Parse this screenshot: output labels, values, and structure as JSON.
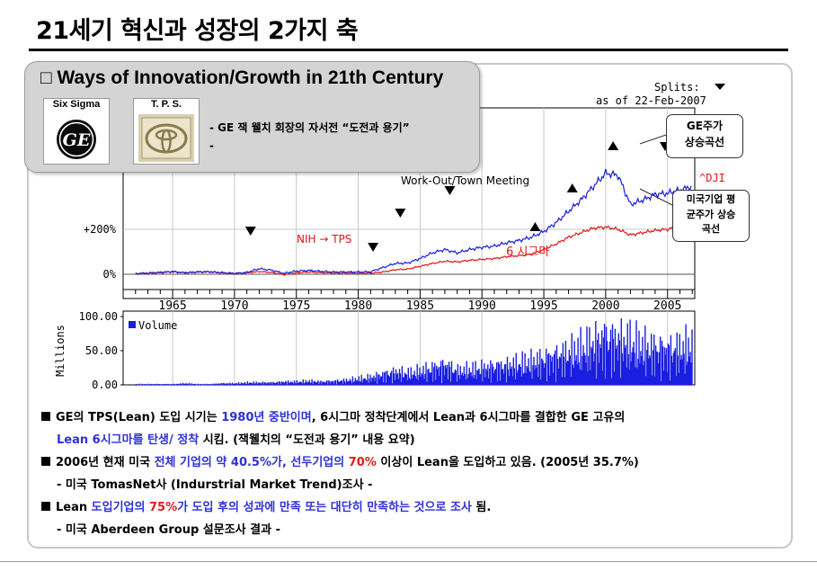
{
  "slide": {
    "title": "21세기 혁신과 성장의 2가지 축"
  },
  "overlay": {
    "title": "□ Ways of Innovation/Growth in 21th Century",
    "cards": [
      {
        "label": "Six Sigma",
        "logo": "ge-logo"
      },
      {
        "label": "T. P. S.",
        "logo": "toyota-logo"
      }
    ],
    "lines": [
      "-  GE 잭 웰치 회장의 자서전  “도전과 용기”",
      "-"
    ]
  },
  "chart_data": [
    {
      "type": "line",
      "header": {
        "splits": "Splits:",
        "as_of": "as of 22-Feb-2007"
      },
      "x_ticks": [
        "1965",
        "1970",
        "1975",
        "1980",
        "1985",
        "1990",
        "1995",
        "2000",
        "2005"
      ],
      "x_range": [
        1961,
        2007.2
      ],
      "y_ticks": [
        "0%",
        "+200%"
      ],
      "legend_label": "^DJI",
      "colors": {
        "stock": "#1a1ee0",
        "index": "#e01818"
      },
      "series": [
        {
          "name": "GE주가",
          "x": [
            1962,
            1963,
            1964,
            1965,
            1966,
            1967,
            1968,
            1969,
            1970,
            1971,
            1972,
            1973,
            1974,
            1975,
            1976,
            1977,
            1978,
            1979,
            1980,
            1981,
            1982,
            1983,
            1984,
            1985,
            1986,
            1987,
            1988,
            1989,
            1990,
            1991,
            1992,
            1993,
            1994,
            1995,
            1996,
            1997,
            1998,
            1999,
            2000,
            2001,
            2002,
            2003,
            2004,
            2005,
            2006,
            2007
          ],
          "values": [
            3,
            5,
            7,
            12,
            6,
            10,
            11,
            7,
            4,
            8,
            25,
            18,
            4,
            14,
            17,
            13,
            10,
            10,
            10,
            11,
            30,
            48,
            50,
            70,
            95,
            110,
            95,
            110,
            120,
            125,
            140,
            150,
            165,
            190,
            230,
            280,
            330,
            390,
            450,
            440,
            310,
            330,
            355,
            360,
            375,
            390
          ]
        },
        {
          "name": "^DJI",
          "x": [
            1962,
            1963,
            1964,
            1965,
            1966,
            1967,
            1968,
            1969,
            1970,
            1971,
            1972,
            1973,
            1974,
            1975,
            1976,
            1977,
            1978,
            1979,
            1980,
            1981,
            1982,
            1983,
            1984,
            1985,
            1986,
            1987,
            1988,
            1989,
            1990,
            1991,
            1992,
            1993,
            1994,
            1995,
            1996,
            1997,
            1998,
            1999,
            2000,
            2001,
            2002,
            2003,
            2004,
            2005,
            2006,
            2007
          ],
          "values": [
            2,
            5,
            9,
            11,
            7,
            10,
            11,
            6,
            3,
            6,
            12,
            8,
            -2,
            6,
            10,
            7,
            5,
            5,
            4,
            5,
            10,
            20,
            23,
            35,
            48,
            58,
            55,
            62,
            66,
            70,
            78,
            83,
            90,
            110,
            135,
            165,
            185,
            205,
            210,
            200,
            175,
            185,
            195,
            200,
            215,
            235
          ]
        }
      ],
      "annotations": [
        {
          "text": "Work-Out/Town Meeting",
          "x": 1987.5,
          "y": 230,
          "color": "#000000"
        },
        {
          "text": "NIH → TPS",
          "x": 1979,
          "y": 80,
          "color": "#e01818"
        },
        {
          "text": "6 시그마",
          "x": 1995,
          "y": 50,
          "color": "#e01818"
        }
      ],
      "split_markers": [
        1971.3,
        1981.2,
        1983.4,
        1987.4,
        1994.3,
        1997.3,
        2000.6,
        2004.8
      ]
    },
    {
      "type": "bar",
      "ylabel": "Millions",
      "legend": "Volume",
      "y_ticks": [
        "100.00",
        "50.00",
        "0.00"
      ],
      "ylim": [
        0,
        100
      ],
      "color": "#1a1ee0",
      "x": [
        1962,
        1963,
        1964,
        1965,
        1966,
        1967,
        1968,
        1969,
        1970,
        1971,
        1972,
        1973,
        1974,
        1975,
        1976,
        1977,
        1978,
        1979,
        1980,
        1981,
        1982,
        1983,
        1984,
        1985,
        1986,
        1987,
        1988,
        1989,
        1990,
        1991,
        1992,
        1993,
        1994,
        1995,
        1996,
        1997,
        1998,
        1999,
        2000,
        2001,
        2002,
        2003,
        2004,
        2005,
        2006,
        2007
      ],
      "values": [
        1,
        1,
        1,
        1,
        2,
        1,
        1,
        2,
        2,
        3,
        3,
        3,
        4,
        4,
        5,
        4,
        5,
        6,
        8,
        10,
        14,
        17,
        15,
        18,
        22,
        26,
        18,
        20,
        22,
        24,
        25,
        28,
        30,
        34,
        38,
        42,
        48,
        55,
        62,
        58,
        56,
        50,
        48,
        46,
        48,
        52
      ]
    }
  ],
  "callouts": {
    "ge": [
      "GE주가",
      "상승곡선"
    ],
    "dji": [
      "미국기업 평",
      "균주가 상승",
      "곡선"
    ]
  },
  "notes": [
    {
      "bullet": true,
      "parts": [
        {
          "t": "GE의 TPS(Lean) 도입 시기는 ",
          "c": ""
        },
        {
          "t": "1980년 중반이며",
          "c": "blue"
        },
        {
          "t": ", 6시그마 정착단계에서 Lean과 6시그마를 결합한 GE 고유의",
          "c": ""
        }
      ]
    },
    {
      "bullet": false,
      "indent": true,
      "parts": [
        {
          "t": "Lean 6시그마를 탄생/ 정착",
          "c": "blue"
        },
        {
          "t": " 시킴. (잭웰치의  “도전과 용기”  내용 요약)",
          "c": ""
        }
      ]
    },
    {
      "bullet": true,
      "parts": [
        {
          "t": "2006년 현재 미국 ",
          "c": ""
        },
        {
          "t": "전체 기업의 약 40.5%가, 선두기업의 ",
          "c": "blue"
        },
        {
          "t": "70%",
          "c": "red"
        },
        {
          "t": " 이상이 Lean을 도입하고 있음. (2005년 35.7%)",
          "c": ""
        }
      ]
    },
    {
      "bullet": false,
      "indent": true,
      "parts": [
        {
          "t": "- 미국 TomasNet사 (Indurstrial Market Trend)조사 -",
          "c": ""
        }
      ]
    },
    {
      "bullet": true,
      "parts": [
        {
          "t": "Lean ",
          "c": ""
        },
        {
          "t": "도입기업의 ",
          "c": "blue"
        },
        {
          "t": "75%",
          "c": "red"
        },
        {
          "t": "가 도입 후의 성과에 만족 또는 대단히 만족하는 것으로 조사 ",
          "c": "blue"
        },
        {
          "t": "됨.",
          "c": ""
        }
      ]
    },
    {
      "bullet": false,
      "indent": true,
      "parts": [
        {
          "t": "- 미국 Aberdeen Group 설문조사 결과 -",
          "c": ""
        }
      ]
    }
  ]
}
